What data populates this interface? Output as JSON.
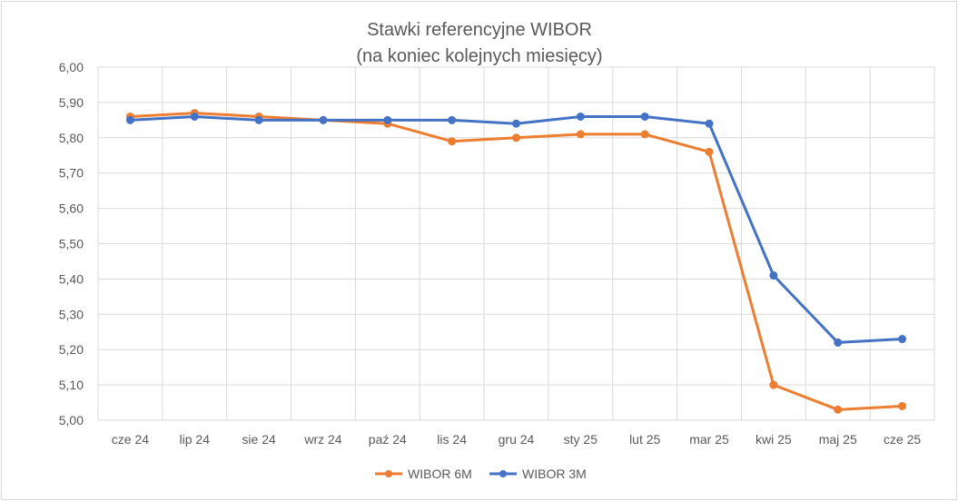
{
  "chart_data": {
    "type": "line",
    "title": "Stawki referencyjne WIBOR",
    "subtitle": "(na koniec kolejnych miesięcy)",
    "xlabel": "",
    "ylabel": "",
    "categories": [
      "cze 24",
      "lip 24",
      "sie 24",
      "wrz 24",
      "paź 24",
      "lis 24",
      "gru 24",
      "sty 25",
      "lut 25",
      "mar 25",
      "kwi 25",
      "maj 25",
      "cze 25"
    ],
    "yticks": [
      "5,00",
      "5,10",
      "5,20",
      "5,30",
      "5,40",
      "5,50",
      "5,60",
      "5,70",
      "5,80",
      "5,90",
      "6,00"
    ],
    "ylim": [
      5.0,
      6.0
    ],
    "grid": true,
    "legend_position": "bottom",
    "series": [
      {
        "name": "WIBOR 6M",
        "color": "#ed7d31",
        "values": [
          5.86,
          5.87,
          5.86,
          5.85,
          5.84,
          5.79,
          5.8,
          5.81,
          5.81,
          5.76,
          5.1,
          5.03,
          5.04
        ]
      },
      {
        "name": "WIBOR 3M",
        "color": "#4472c4",
        "values": [
          5.85,
          5.86,
          5.85,
          5.85,
          5.85,
          5.85,
          5.84,
          5.86,
          5.86,
          5.84,
          5.41,
          5.22,
          5.23
        ]
      }
    ]
  }
}
